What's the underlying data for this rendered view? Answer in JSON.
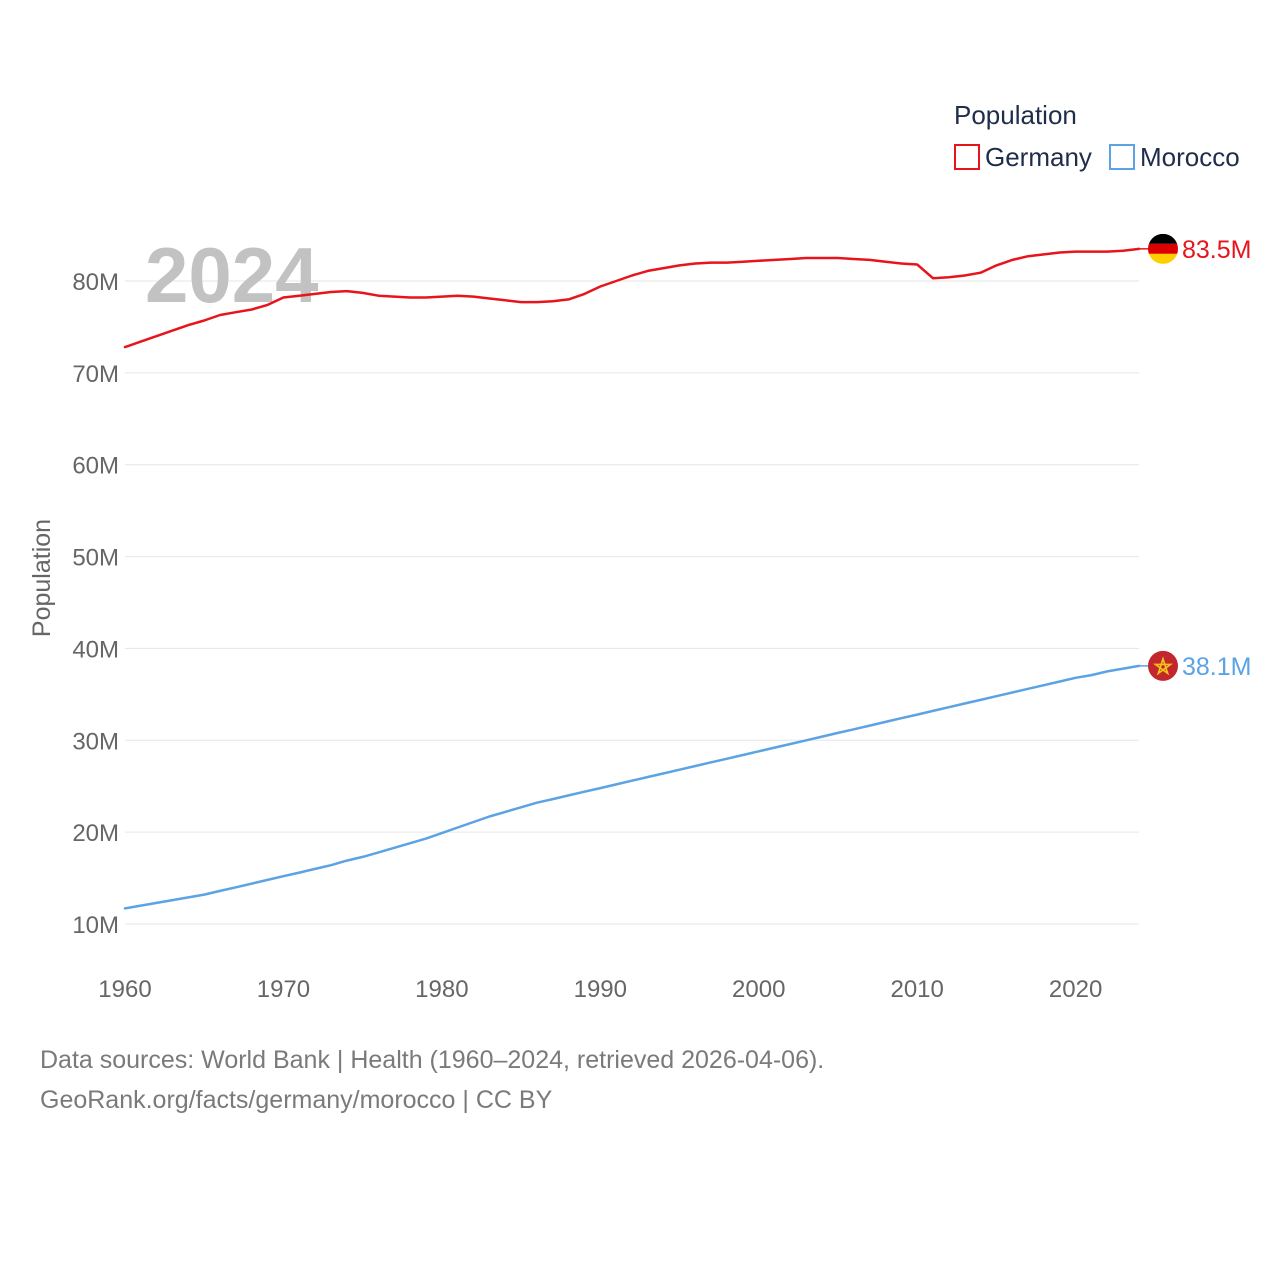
{
  "chart_data": {
    "type": "line",
    "title": "",
    "year_label": "2024",
    "xlabel": "",
    "ylabel": "Population",
    "xlim": [
      1960,
      2024
    ],
    "ylim": [
      10,
      85
    ],
    "x_ticks": [
      1960,
      1970,
      1980,
      1990,
      2000,
      2010,
      2020
    ],
    "y_ticks": [
      {
        "value": 10,
        "label": "10M"
      },
      {
        "value": 20,
        "label": "20M"
      },
      {
        "value": 30,
        "label": "30M"
      },
      {
        "value": 40,
        "label": "40M"
      },
      {
        "value": 50,
        "label": "50M"
      },
      {
        "value": 60,
        "label": "60M"
      },
      {
        "value": 70,
        "label": "70M"
      },
      {
        "value": 80,
        "label": "80M"
      }
    ],
    "legend": {
      "title": "Population",
      "placement": "top-right",
      "entries": [
        "Germany",
        "Morocco"
      ]
    },
    "x": [
      1960,
      1961,
      1962,
      1963,
      1964,
      1965,
      1966,
      1967,
      1968,
      1969,
      1970,
      1971,
      1972,
      1973,
      1974,
      1975,
      1976,
      1977,
      1978,
      1979,
      1980,
      1981,
      1982,
      1983,
      1984,
      1985,
      1986,
      1987,
      1988,
      1989,
      1990,
      1991,
      1992,
      1993,
      1994,
      1995,
      1996,
      1997,
      1998,
      1999,
      2000,
      2001,
      2002,
      2003,
      2004,
      2005,
      2006,
      2007,
      2008,
      2009,
      2010,
      2011,
      2012,
      2013,
      2014,
      2015,
      2016,
      2017,
      2018,
      2019,
      2020,
      2021,
      2022,
      2023,
      2024
    ],
    "series": [
      {
        "name": "Germany",
        "color": "#e8141c",
        "end_label": "83.5M",
        "flag": "germany-flag",
        "values": [
          72.8,
          73.4,
          74.0,
          74.6,
          75.2,
          75.7,
          76.3,
          76.6,
          76.9,
          77.4,
          78.2,
          78.4,
          78.6,
          78.8,
          78.9,
          78.7,
          78.4,
          78.3,
          78.2,
          78.2,
          78.3,
          78.4,
          78.3,
          78.1,
          77.9,
          77.7,
          77.7,
          77.8,
          78.0,
          78.6,
          79.4,
          80.0,
          80.6,
          81.1,
          81.4,
          81.7,
          81.9,
          82.0,
          82.0,
          82.1,
          82.2,
          82.3,
          82.4,
          82.5,
          82.5,
          82.5,
          82.4,
          82.3,
          82.1,
          81.9,
          81.8,
          80.3,
          80.4,
          80.6,
          80.9,
          81.7,
          82.3,
          82.7,
          82.9,
          83.1,
          83.2,
          83.2,
          83.2,
          83.3,
          83.5
        ]
      },
      {
        "name": "Morocco",
        "color": "#5ba3e4",
        "end_label": "38.1M",
        "flag": "morocco-flag",
        "values": [
          11.7,
          12.0,
          12.3,
          12.6,
          12.9,
          13.2,
          13.6,
          14.0,
          14.4,
          14.8,
          15.2,
          15.6,
          16.0,
          16.4,
          16.9,
          17.3,
          17.8,
          18.3,
          18.8,
          19.3,
          19.9,
          20.5,
          21.1,
          21.7,
          22.2,
          22.7,
          23.2,
          23.6,
          24.0,
          24.4,
          24.8,
          25.2,
          25.6,
          26.0,
          26.4,
          26.8,
          27.2,
          27.6,
          28.0,
          28.4,
          28.8,
          29.2,
          29.6,
          30.0,
          30.4,
          30.8,
          31.2,
          31.6,
          32.0,
          32.4,
          32.8,
          33.2,
          33.6,
          34.0,
          34.4,
          34.8,
          35.2,
          35.6,
          36.0,
          36.4,
          36.8,
          37.1,
          37.5,
          37.8,
          38.1
        ]
      }
    ]
  },
  "footer": {
    "source_line": "Data sources: World Bank | Health (1960–2024, retrieved 2026-04-06).",
    "attribution_line": "GeoRank.org/facts/germany/morocco | CC BY"
  }
}
